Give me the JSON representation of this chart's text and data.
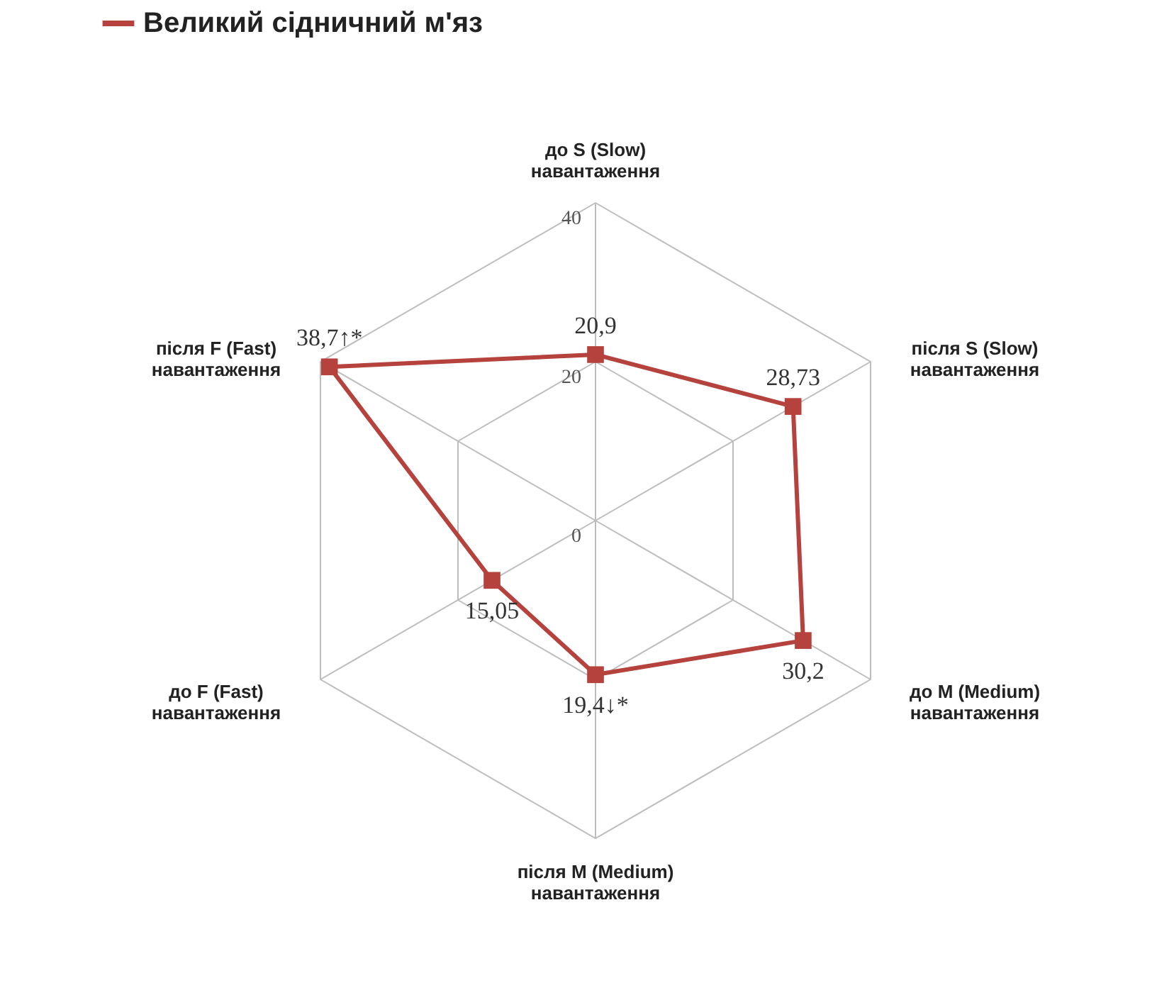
{
  "chart_data": {
    "type": "radar",
    "categories": [
      "до S (Slow) навантаження",
      "після S (Slow) навантаження",
      "до M (Medium) навантаження",
      "після M (Medium) навантаження",
      "до F (Fast) навантаження",
      "після F (Fast) навантаження"
    ],
    "series": [
      {
        "name": "Великий сідничний м'яз",
        "color": "#b5423d",
        "values": [
          20.9,
          28.73,
          30.2,
          19.4,
          15.05,
          38.7
        ],
        "value_labels": [
          "20,9",
          "28,73",
          "30,2",
          "19,4↓*",
          "15,05",
          "38,7↑*"
        ]
      }
    ],
    "ylim": [
      0,
      40
    ],
    "yticks": [
      0,
      20,
      40
    ],
    "grid": true,
    "legend": "top",
    "marker": "square",
    "line_style": "solid"
  }
}
